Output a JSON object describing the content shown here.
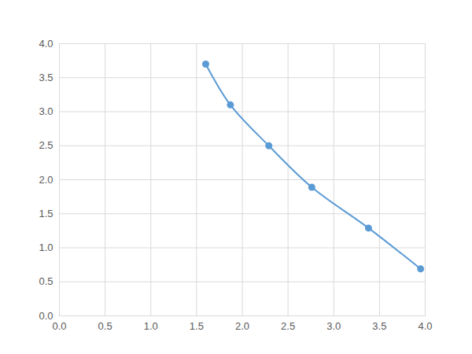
{
  "chart_data": {
    "type": "line",
    "x": [
      1.6,
      1.87,
      2.29,
      2.76,
      3.38,
      3.95
    ],
    "series": [
      {
        "name": null,
        "color": "#5b9bd5",
        "values": [
          3.7,
          3.1,
          2.5,
          1.89,
          1.29,
          0.69
        ]
      }
    ],
    "marker": "circle",
    "line_style": "solid",
    "xlim": [
      0,
      4
    ],
    "ylim": [
      0,
      4
    ],
    "xticks": [
      {
        "value": 0,
        "label": "0.0"
      },
      {
        "value": 0.5,
        "label": "0.5"
      },
      {
        "value": 1,
        "label": "1.0"
      },
      {
        "value": 1.5,
        "label": "1.5"
      },
      {
        "value": 2,
        "label": "2.0"
      },
      {
        "value": 2.5,
        "label": "2.5"
      },
      {
        "value": 3,
        "label": "3.0"
      },
      {
        "value": 3.5,
        "label": "3.5"
      },
      {
        "value": 4,
        "label": "4.0"
      }
    ],
    "yticks": [
      {
        "value": 0,
        "label": "0.0"
      },
      {
        "value": 0.5,
        "label": "0.5"
      },
      {
        "value": 1,
        "label": "1.0"
      },
      {
        "value": 1.5,
        "label": "1.5"
      },
      {
        "value": 2,
        "label": "2.0"
      },
      {
        "value": 2.5,
        "label": "2.5"
      },
      {
        "value": 3,
        "label": "3.0"
      },
      {
        "value": 3.5,
        "label": "3.5"
      },
      {
        "value": 4,
        "label": "4.0"
      }
    ],
    "grid": true
  }
}
